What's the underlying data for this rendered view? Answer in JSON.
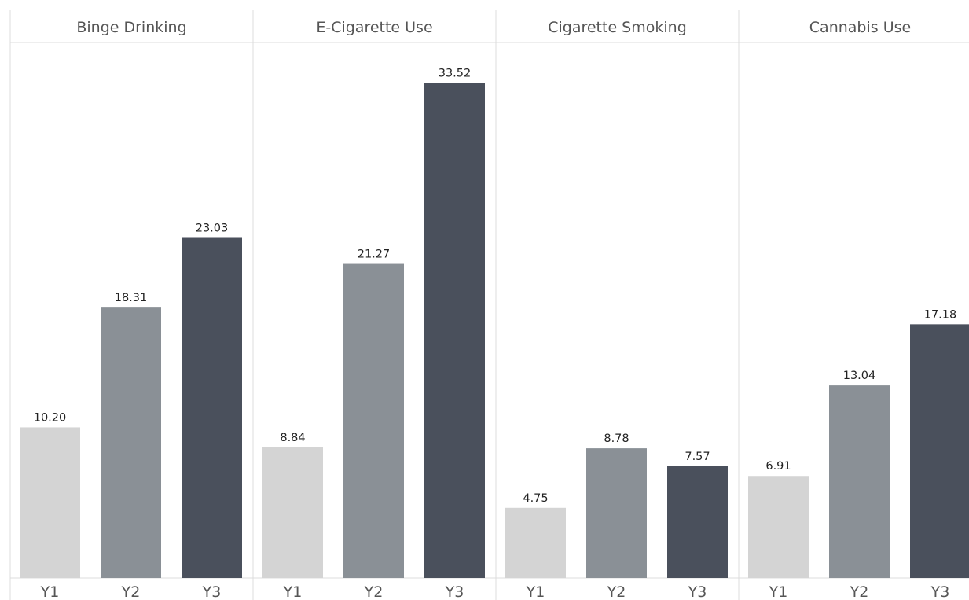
{
  "chart_data": {
    "type": "bar",
    "panels": [
      "Binge Drinking",
      "E-Cigarette Use",
      "Cigarette Smoking",
      "Cannabis Use"
    ],
    "categories": [
      "Y1",
      "Y2",
      "Y3"
    ],
    "series": [
      {
        "panel": "Binge Drinking",
        "values": [
          10.2,
          18.31,
          23.03
        ]
      },
      {
        "panel": "E-Cigarette Use",
        "values": [
          8.84,
          21.27,
          33.52
        ]
      },
      {
        "panel": "Cigarette Smoking",
        "values": [
          4.75,
          8.78,
          7.57
        ]
      },
      {
        "panel": "Cannabis Use",
        "values": [
          6.91,
          13.04,
          17.18
        ]
      }
    ],
    "value_labels": [
      [
        "10.20",
        "18.31",
        "23.03"
      ],
      [
        "8.84",
        "21.27",
        "33.52"
      ],
      [
        "4.75",
        "8.78",
        "7.57"
      ],
      [
        "6.91",
        "13.04",
        "17.18"
      ]
    ],
    "ylim": [
      0,
      36
    ],
    "grid": false,
    "legend": "none",
    "colors": [
      "#d4d4d4",
      "#8a9096",
      "#4a505c"
    ],
    "divider_color": "#dcdcdc"
  }
}
